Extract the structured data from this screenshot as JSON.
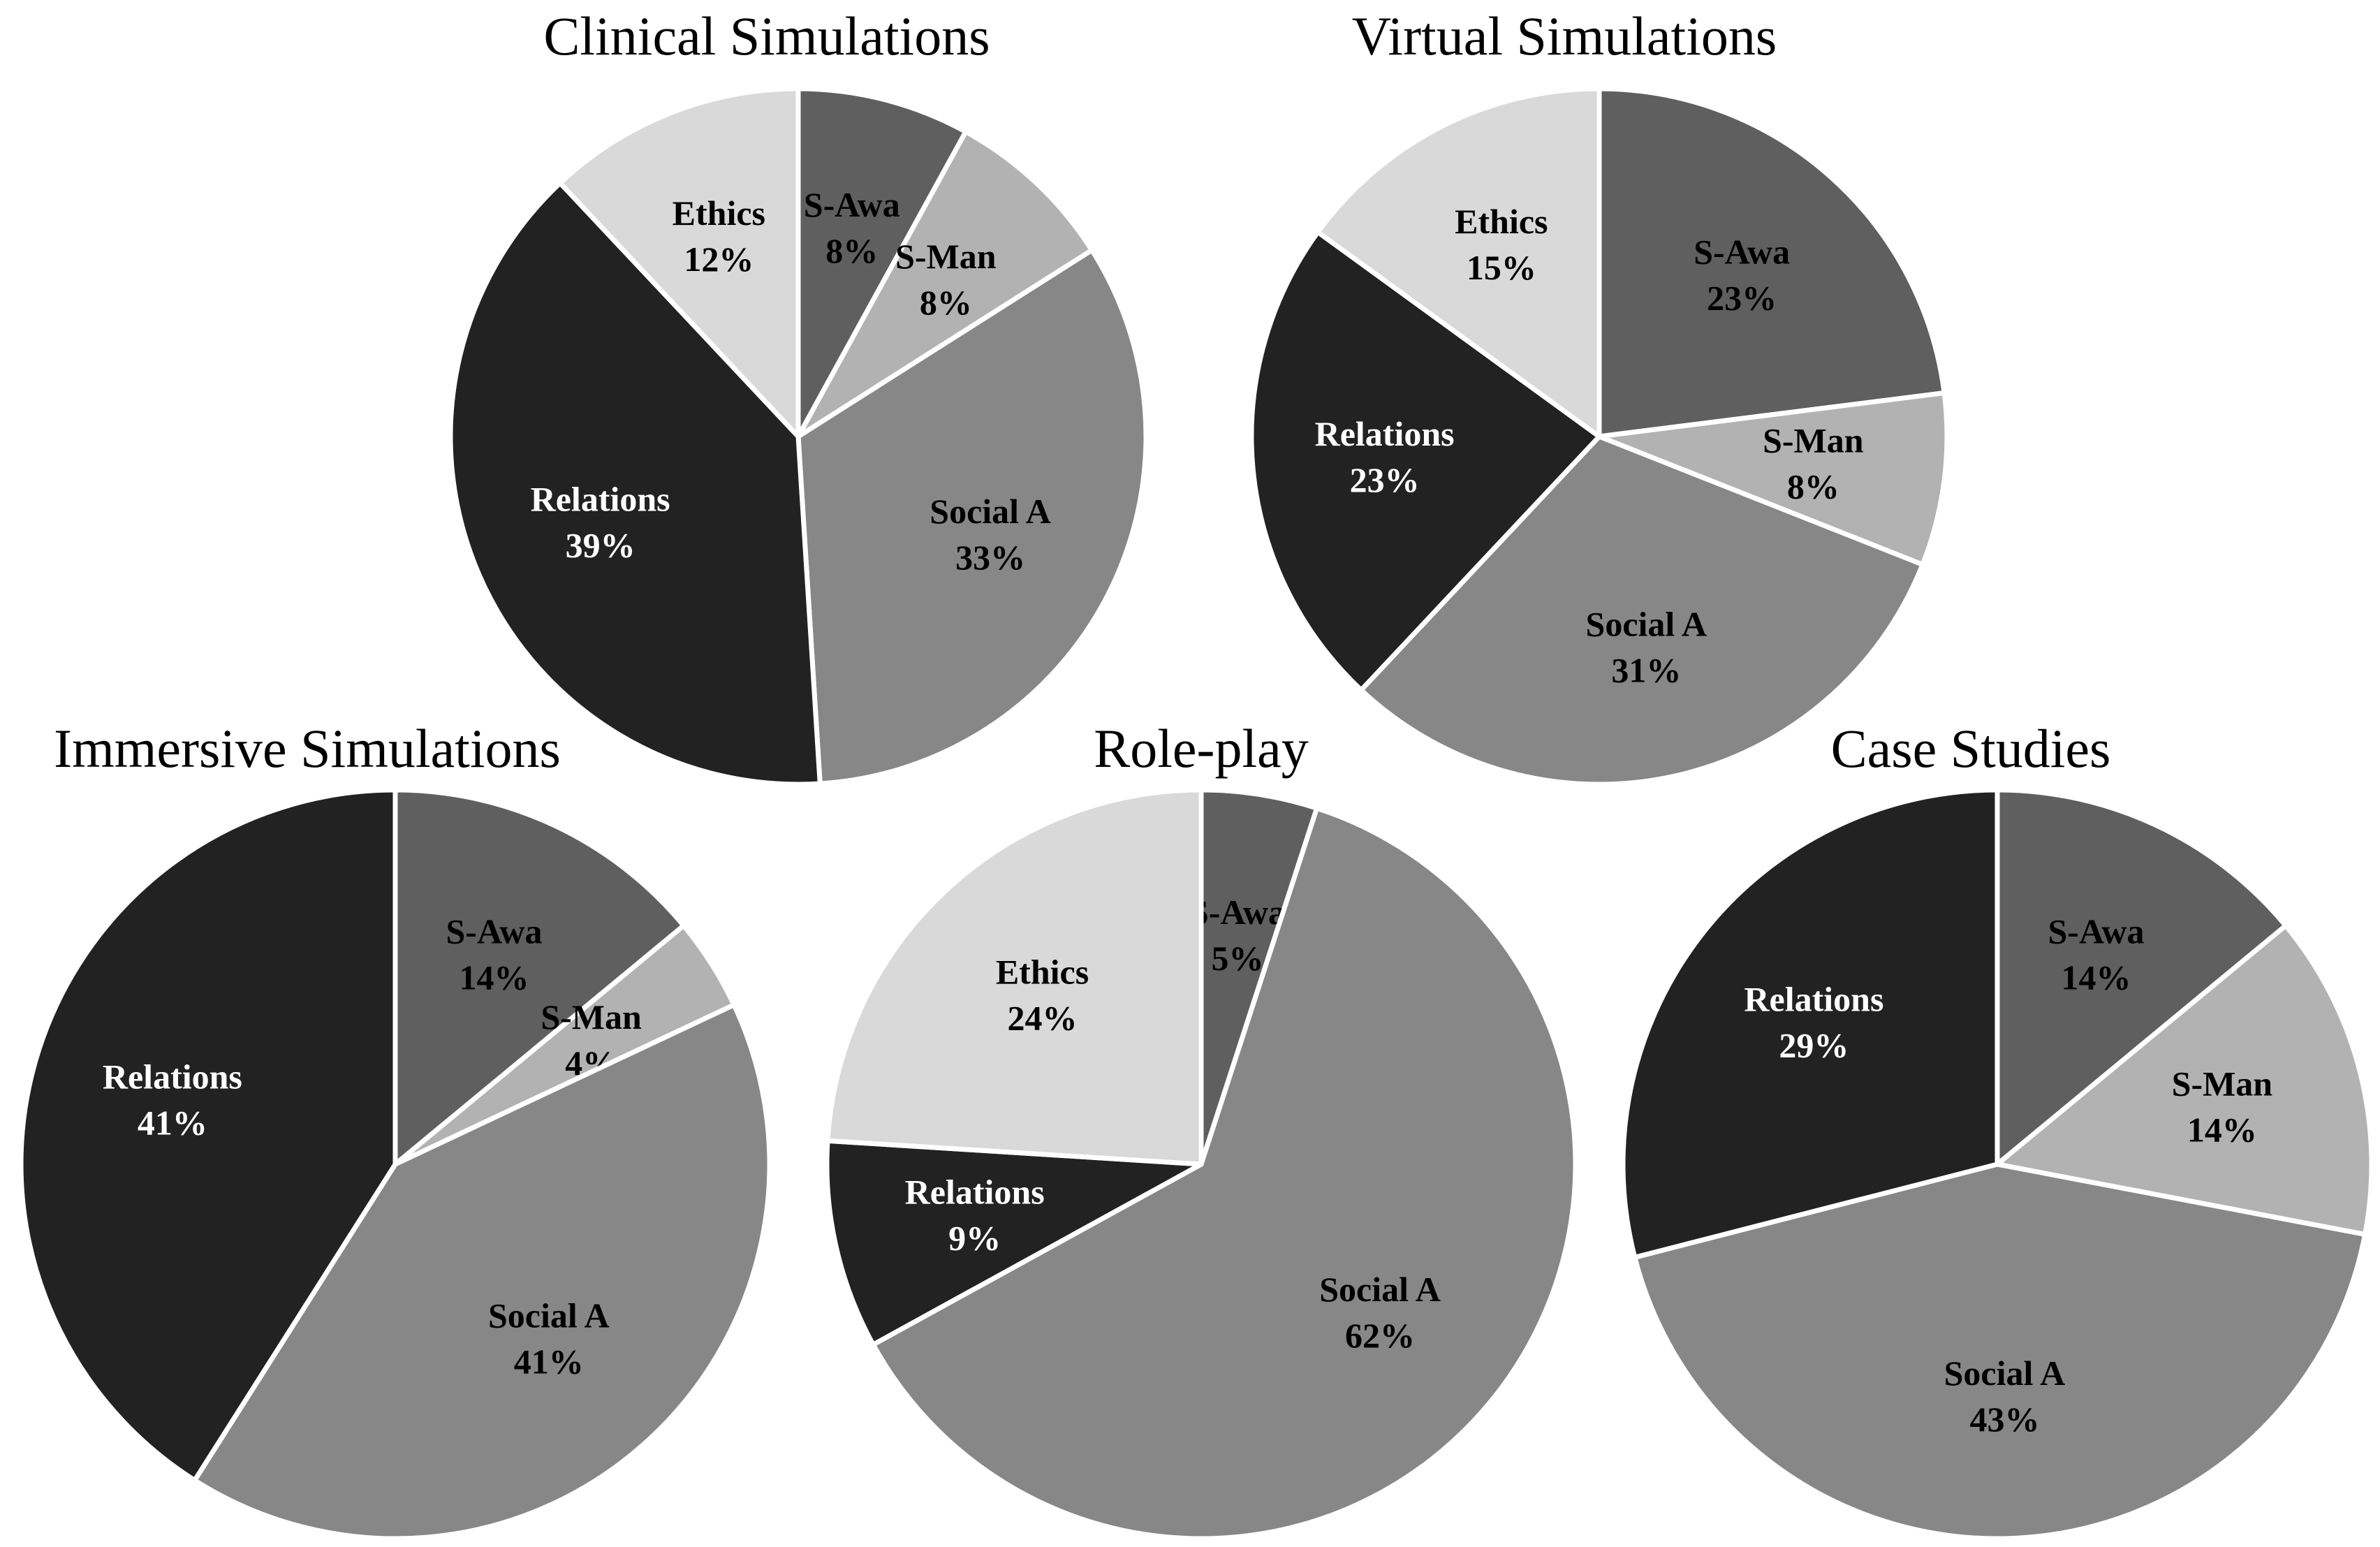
{
  "figure": {
    "colors": {
      "S-Awa": "#5f5f5f",
      "S-Man": "#b2b2b2",
      "Social A": "#878787",
      "Relations": "#222222",
      "Ethics": "#d9d9d9"
    },
    "label_colors": {
      "S-Awa": "#000000",
      "S-Man": "#000000",
      "Social A": "#000000",
      "Relations": "#ffffff",
      "Ethics": "#000000"
    }
  },
  "chart_data": [
    {
      "type": "pie",
      "title": "Clinical Simulations",
      "slices": [
        {
          "name": "S-Awa",
          "label": "S-Awa",
          "value_label": "8%",
          "value": 8
        },
        {
          "name": "S-Man",
          "label": "S-Man",
          "value_label": "8%",
          "value": 8
        },
        {
          "name": "Social A",
          "label": "Social A",
          "value_label": "33%",
          "value": 33
        },
        {
          "name": "Relations",
          "label": "Relations",
          "value_label": "39%",
          "value": 39
        },
        {
          "name": "Ethics",
          "label": "Ethics",
          "value_label": "12%",
          "value": 12
        }
      ]
    },
    {
      "type": "pie",
      "title": "Virtual Simulations",
      "slices": [
        {
          "name": "S-Awa",
          "label": "S-Awa",
          "value_label": "23%",
          "value": 23
        },
        {
          "name": "S-Man",
          "label": "S-Man",
          "value_label": "8%",
          "value": 8
        },
        {
          "name": "Social A",
          "label": "Social A",
          "value_label": "31%",
          "value": 31
        },
        {
          "name": "Relations",
          "label": "Relations",
          "value_label": "23%",
          "value": 23
        },
        {
          "name": "Ethics",
          "label": "Ethics",
          "value_label": "15%",
          "value": 15
        }
      ]
    },
    {
      "type": "pie",
      "title": "Immersive Simulations",
      "slices": [
        {
          "name": "S-Awa",
          "label": "S-Awa",
          "value_label": "14%",
          "value": 14
        },
        {
          "name": "S-Man",
          "label": "S-Man",
          "value_label": "4%",
          "value": 4
        },
        {
          "name": "Social A",
          "label": "Social A",
          "value_label": "41%",
          "value": 41
        },
        {
          "name": "Relations",
          "label": "Relations",
          "value_label": "41%",
          "value": 41
        }
      ]
    },
    {
      "type": "pie",
      "title": "Role-play",
      "slices": [
        {
          "name": "S-Awa",
          "label": "S-Awa",
          "value_label": "5%",
          "value": 5
        },
        {
          "name": "Social A",
          "label": "Social A",
          "value_label": "62%",
          "value": 62
        },
        {
          "name": "Relations",
          "label": "Relations",
          "value_label": "9%",
          "value": 9
        },
        {
          "name": "Ethics",
          "label": "Ethics",
          "value_label": "24%",
          "value": 24
        }
      ]
    },
    {
      "type": "pie",
      "title": "Case Studies",
      "slices": [
        {
          "name": "S-Awa",
          "label": "S-Awa",
          "value_label": "14%",
          "value": 14
        },
        {
          "name": "S-Man",
          "label": "S-Man",
          "value_label": "14%",
          "value": 14
        },
        {
          "name": "Social A",
          "label": "Social A",
          "value_label": "43%",
          "value": 43
        },
        {
          "name": "Relations",
          "label": "Relations",
          "value_label": "29%",
          "value": 29
        }
      ]
    }
  ]
}
